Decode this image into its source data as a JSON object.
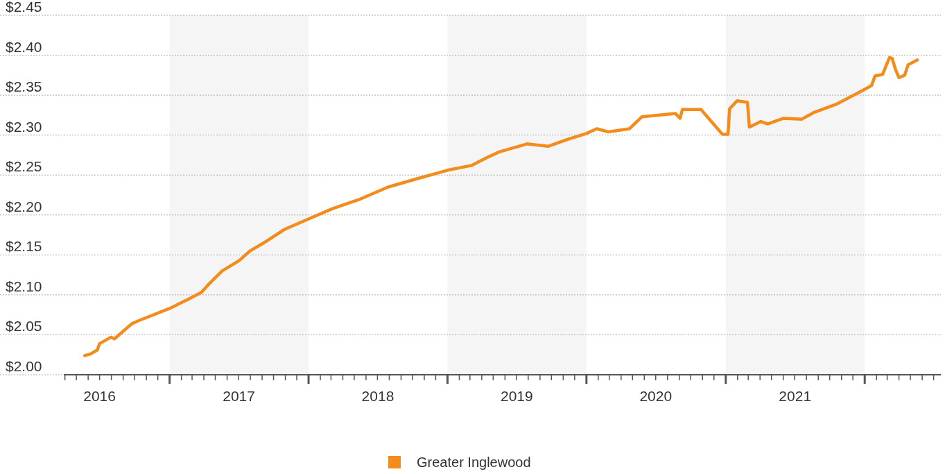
{
  "chart_data": {
    "type": "line",
    "legend": "bottom",
    "grid": "y",
    "x": [
      "2016-05-23",
      "2016-06-07",
      "2016-06-25",
      "2016-07-01",
      "2016-07-31",
      "2016-08-09",
      "2016-09-24",
      "2016-10-13",
      "2017-01-01",
      "2017-02-17",
      "2017-03-25",
      "2017-04-13",
      "2017-05-19",
      "2017-07-03",
      "2017-07-31",
      "2017-09-05",
      "2017-10-30",
      "2018-01-01",
      "2018-03-05",
      "2018-05-17",
      "2018-07-29",
      "2018-10-10",
      "2019-01-01",
      "2019-03-05",
      "2019-04-11",
      "2019-05-17",
      "2019-07-29",
      "2019-09-22",
      "2019-11-15",
      "2020-01-01",
      "2020-01-28",
      "2020-02-28",
      "2020-04-23",
      "2020-05-26",
      "2020-08-22",
      "2020-09-03",
      "2020-09-09",
      "2020-10-28",
      "2020-12-23",
      "2021-01-07",
      "2021-01-11",
      "2021-01-31",
      "2021-02-27",
      "2021-03-04",
      "2021-04-03",
      "2021-04-21",
      "2021-06-02",
      "2021-07-20",
      "2021-08-19",
      "2021-10-20",
      "2021-12-19",
      "2022-01-19",
      "2022-01-28",
      "2022-02-17",
      "2022-03-07",
      "2022-03-14",
      "2022-03-23",
      "2022-04-01",
      "2022-04-16",
      "2022-04-25",
      "2022-05-19"
    ],
    "series": [
      {
        "name": "Greater Inglewood",
        "color": "#f28c1c",
        "values": [
          2.024,
          2.026,
          2.031,
          2.039,
          2.047,
          2.045,
          2.064,
          2.068,
          2.083,
          2.094,
          2.103,
          2.113,
          2.13,
          2.143,
          2.155,
          2.165,
          2.182,
          2.195,
          2.208,
          2.22,
          2.235,
          2.245,
          2.256,
          2.262,
          2.271,
          2.279,
          2.289,
          2.286,
          2.295,
          2.302,
          2.308,
          2.304,
          2.308,
          2.323,
          2.327,
          2.321,
          2.332,
          2.332,
          2.301,
          2.301,
          2.333,
          2.343,
          2.341,
          2.31,
          2.317,
          2.314,
          2.321,
          2.32,
          2.328,
          2.339,
          2.354,
          2.362,
          2.374,
          2.376,
          2.397,
          2.396,
          2.382,
          2.372,
          2.375,
          2.388,
          2.394
        ]
      }
    ],
    "xlim": [
      "2016-03-29",
      "2022-07-20"
    ],
    "xticks": [
      {
        "value": "2016-07-01",
        "label": "2016"
      },
      {
        "value": "2017-01-01",
        "label": null
      },
      {
        "value": "2017-07-02",
        "label": "2017"
      },
      {
        "value": "2018-01-01",
        "label": null
      },
      {
        "value": "2018-07-02",
        "label": "2018"
      },
      {
        "value": "2019-01-01",
        "label": null
      },
      {
        "value": "2019-07-02",
        "label": "2019"
      },
      {
        "value": "2020-01-01",
        "label": null
      },
      {
        "value": "2020-07-01",
        "label": "2020"
      },
      {
        "value": "2021-01-01",
        "label": null
      },
      {
        "value": "2021-07-02",
        "label": "2021"
      },
      {
        "value": "2022-01-01",
        "label": null
      }
    ],
    "ylim": [
      2.0,
      2.45
    ],
    "yticks": [
      {
        "value": 2.0,
        "label": "$2.00"
      },
      {
        "value": 2.05,
        "label": "$2.05"
      },
      {
        "value": 2.1,
        "label": "$2.10"
      },
      {
        "value": 2.15,
        "label": "$2.15"
      },
      {
        "value": 2.2,
        "label": "$2.20"
      },
      {
        "value": 2.25,
        "label": "$2.25"
      },
      {
        "value": 2.3,
        "label": "$2.30"
      },
      {
        "value": 2.35,
        "label": "$2.35"
      },
      {
        "value": 2.4,
        "label": "$2.40"
      },
      {
        "value": 2.45,
        "label": "$2.45"
      }
    ],
    "bands": [
      {
        "axis": "x",
        "from": "2017-01-01",
        "to": "2018-01-01",
        "color": "#f5f5f5"
      },
      {
        "axis": "x",
        "from": "2019-01-01",
        "to": "2020-01-01",
        "color": "#f5f5f5"
      },
      {
        "axis": "x",
        "from": "2021-01-01",
        "to": "2022-01-01",
        "color": "#f5f5f5"
      }
    ]
  }
}
